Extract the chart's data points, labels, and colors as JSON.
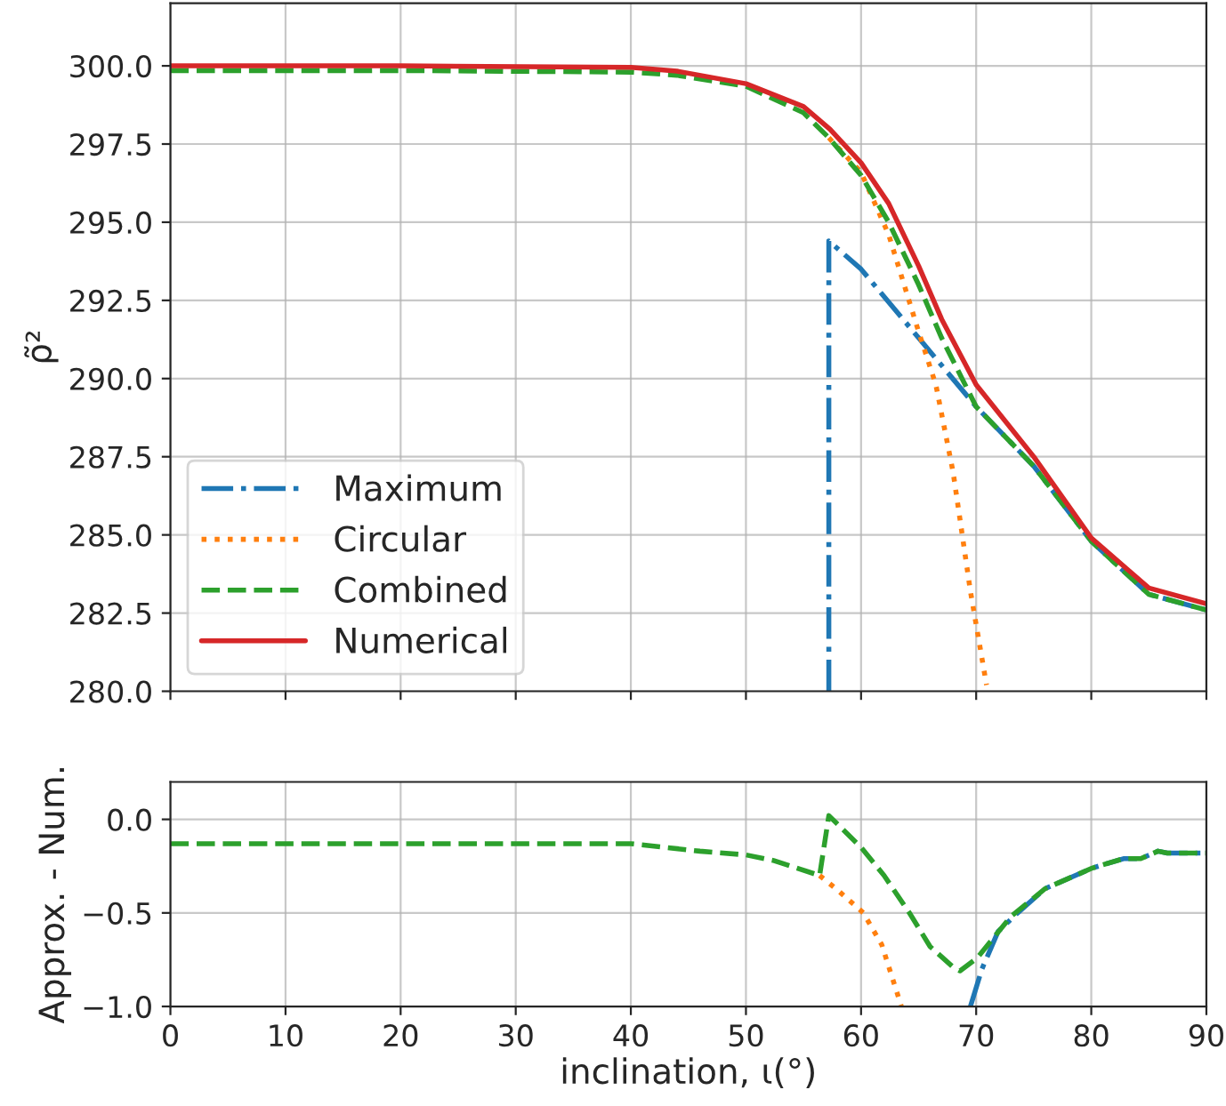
{
  "chart_data": [
    {
      "type": "line",
      "ylabel": "ρ̃²",
      "xlim": [
        0,
        90
      ],
      "xticks": [
        0,
        10,
        20,
        30,
        40,
        50,
        60,
        70,
        80,
        90
      ],
      "ylim": [
        280,
        302
      ],
      "yticks": [
        {
          "value": 280,
          "label": "280.0"
        },
        {
          "value": 282.5,
          "label": "282.5"
        },
        {
          "value": 285,
          "label": "285.0"
        },
        {
          "value": 287.5,
          "label": "287.5"
        },
        {
          "value": 290,
          "label": "290.0"
        },
        {
          "value": 292.5,
          "label": "292.5"
        },
        {
          "value": 295,
          "label": "295.0"
        },
        {
          "value": 297.5,
          "label": "297.5"
        },
        {
          "value": 300,
          "label": "300.0"
        }
      ],
      "tick_labels": "y",
      "grid": true,
      "legend": "bottom left",
      "series": [
        {
          "name": "Maximum",
          "color": "#1f77b4",
          "line_style": "dashdot",
          "x": [
            57.2,
            57.2,
            60,
            65,
            70,
            75,
            80,
            85,
            90
          ],
          "values": [
            280,
            294.4,
            293.5,
            291.3,
            289.1,
            287.2,
            284.8,
            283.1,
            282.6
          ]
        },
        {
          "name": "Circular",
          "color": "#ff7f0e",
          "line_style": "dotted",
          "x": [
            57.2,
            60,
            62.4,
            65,
            66.5,
            68,
            69.5,
            70.9
          ],
          "values": [
            297.7,
            296.6,
            294.6,
            291.5,
            289.8,
            287.0,
            283.2,
            280.2
          ]
        },
        {
          "name": "Combined",
          "color": "#2ca02c",
          "line_style": "dashed",
          "x": [
            0,
            20,
            40,
            44,
            50,
            55,
            57.2,
            60,
            62.4,
            65,
            67,
            70,
            75,
            80,
            85,
            90
          ],
          "values": [
            299.85,
            299.85,
            299.8,
            299.7,
            299.35,
            298.5,
            297.7,
            296.5,
            295.0,
            293.0,
            291.3,
            289.1,
            287.2,
            284.8,
            283.1,
            282.6
          ]
        },
        {
          "name": "Numerical",
          "color": "#d62728",
          "line_style": "solid",
          "x": [
            0,
            20,
            40,
            44,
            50,
            55,
            57.3,
            60,
            62.4,
            65,
            67,
            70,
            75,
            80,
            85,
            90
          ],
          "values": [
            300.0,
            300.0,
            299.95,
            299.83,
            299.43,
            298.7,
            297.97,
            296.9,
            295.6,
            293.6,
            291.9,
            289.8,
            287.5,
            284.9,
            283.3,
            282.8
          ]
        }
      ]
    },
    {
      "type": "line",
      "xlabel": "inclination, ι(°)",
      "ylabel": "Approx. - Num.",
      "xlim": [
        0,
        90
      ],
      "xticks": [
        0,
        10,
        20,
        30,
        40,
        50,
        60,
        70,
        80,
        90
      ],
      "ylim": [
        -1.0,
        0.2
      ],
      "yticks": [
        {
          "value": -1.0,
          "label": "−1.0"
        },
        {
          "value": -0.5,
          "label": "−0.5"
        },
        {
          "value": 0.0,
          "label": "0.0"
        }
      ],
      "grid": true,
      "series": [
        {
          "color": "#1f77b4",
          "line_style": "dashdot",
          "x": [
            69.5,
            70.5,
            71.9,
            73.6,
            76,
            80.1,
            82.8,
            84.3,
            85.8,
            86.6,
            90
          ],
          "values": [
            -1.0,
            -0.8,
            -0.6,
            -0.5,
            -0.37,
            -0.26,
            -0.21,
            -0.21,
            -0.17,
            -0.18,
            -0.18
          ]
        },
        {
          "color": "#ff7f0e",
          "line_style": "dotted",
          "x": [
            56.4,
            58,
            60.2,
            61.8,
            63.3,
            63.5
          ],
          "values": [
            -0.3,
            -0.38,
            -0.5,
            -0.67,
            -0.96,
            -1.0
          ]
        },
        {
          "color": "#2ca02c",
          "line_style": "dashed",
          "x": [
            0,
            20,
            40,
            46,
            50,
            52.4,
            56.4,
            57.2,
            60,
            62,
            64.2,
            66,
            68,
            68.6,
            70.1,
            73,
            76,
            80.1,
            82.8,
            84.3,
            85.8,
            86.6,
            90
          ],
          "values": [
            -0.13,
            -0.13,
            -0.13,
            -0.17,
            -0.19,
            -0.22,
            -0.3,
            0.02,
            -0.15,
            -0.3,
            -0.5,
            -0.68,
            -0.79,
            -0.81,
            -0.74,
            -0.52,
            -0.37,
            -0.26,
            -0.21,
            -0.21,
            -0.17,
            -0.18,
            -0.18
          ]
        }
      ]
    }
  ]
}
